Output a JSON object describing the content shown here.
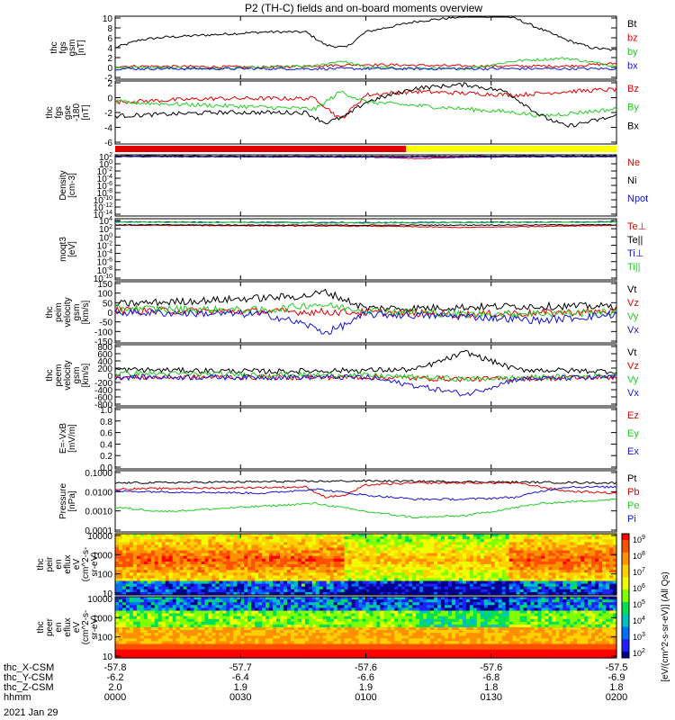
{
  "title": "P2 (TH-C) fields and on-board moments overview",
  "date": "2021 Jan 29",
  "orbit_rows": [
    {
      "label": "thc_X-CSM",
      "values": [
        "-57.8",
        "-57.7",
        "-57.6",
        "-57.6",
        "-57.5"
      ]
    },
    {
      "label": "thc_Y-CSM",
      "values": [
        "-6.2",
        "-6.4",
        "-6.6",
        "-6.8",
        "-6.9"
      ]
    },
    {
      "label": "thc_Z-CSM",
      "values": [
        "2.0",
        "1.9",
        "1.9",
        "1.8",
        "1.8"
      ]
    },
    {
      "label": "hhmm",
      "values": [
        "0000",
        "0030",
        "0100",
        "0130",
        "0200"
      ]
    }
  ],
  "colors": {
    "black": "#000000",
    "red": "#e00000",
    "green": "#22cc22",
    "blue": "#1414d2",
    "yellow": "#ffff00"
  },
  "mode_bar": {
    "segments": [
      {
        "color": "#e00000",
        "from": 0,
        "to": 0.58
      },
      {
        "color": "#ffff00",
        "from": 0.58,
        "to": 1.0
      }
    ]
  },
  "spectro_colorbar": {
    "label": "[eV/(cm^2-s-sr-eV)] (All Qs)",
    "ticks": [
      "10^9",
      "10^8",
      "10^7",
      "10^6",
      "10^5",
      "10^4",
      "10^3",
      "10^2"
    ]
  },
  "chart_data": [
    {
      "type": "line",
      "panel": "fgs",
      "ylabel": [
        "thc",
        "fgs",
        "gsm",
        "[nT]"
      ],
      "yticks": [
        "10",
        "8",
        "6",
        "4",
        "2",
        "0",
        "-2"
      ],
      "ylim": [
        -2,
        10
      ],
      "series": [
        {
          "name": "Bt",
          "color": "#000000",
          "x": [
            0,
            0.05,
            0.1,
            0.2,
            0.3,
            0.38,
            0.42,
            0.46,
            0.5,
            0.6,
            0.7,
            0.78,
            0.8,
            0.85,
            0.9,
            0.95,
            1.0
          ],
          "y": [
            4.0,
            5.5,
            6.0,
            6.5,
            7.0,
            7.0,
            4.5,
            4.0,
            7.0,
            9.0,
            10.0,
            10.0,
            9.5,
            7.5,
            5.5,
            4.0,
            3.5
          ]
        },
        {
          "name": "bz",
          "color": "#e00000",
          "x": [
            0,
            0.3,
            0.5,
            0.7,
            0.8,
            0.9,
            1.0
          ],
          "y": [
            0.5,
            0.3,
            0.8,
            0.5,
            0.5,
            0.5,
            1.0
          ]
        },
        {
          "name": "by",
          "color": "#22cc22",
          "x": [
            0,
            0.2,
            0.4,
            0.45,
            0.5,
            0.6,
            0.7,
            0.8,
            0.9,
            1.0
          ],
          "y": [
            0.3,
            0.0,
            0.5,
            1.5,
            0.3,
            0.0,
            0.0,
            1.5,
            2.0,
            0.5
          ]
        },
        {
          "name": "bx",
          "color": "#1414d2",
          "x": [
            0,
            0.5,
            1.0
          ],
          "y": [
            0.0,
            0.0,
            0.0
          ]
        }
      ]
    },
    {
      "type": "line",
      "panel": "fgs-gse",
      "ylabel": [
        "thc",
        "fgs",
        "gse",
        "-180",
        "[nT]"
      ],
      "yticks": [
        "2",
        "0",
        "-2",
        "-4",
        "-6"
      ],
      "ylim": [
        -7,
        2
      ],
      "series": [
        {
          "name": "Bz",
          "color": "#e00000",
          "x": [
            0,
            0.2,
            0.4,
            0.45,
            0.5,
            0.6,
            0.8,
            0.9,
            1.0
          ],
          "y": [
            -1.0,
            -0.5,
            -0.5,
            -3.5,
            0.0,
            0.5,
            0.0,
            0.5,
            0.8
          ]
        },
        {
          "name": "By",
          "color": "#22cc22",
          "x": [
            0,
            0.2,
            0.4,
            0.45,
            0.5,
            0.6,
            0.8,
            0.85,
            1.0
          ],
          "y": [
            -1.0,
            -1.5,
            -2.0,
            0.5,
            -1.0,
            -1.5,
            -2.5,
            -3.0,
            -2.0
          ]
        },
        {
          "name": "Bx",
          "color": "#000000",
          "x": [
            0,
            0.2,
            0.38,
            0.42,
            0.46,
            0.5,
            0.6,
            0.7,
            0.78,
            0.85,
            0.9,
            1.0
          ],
          "y": [
            -3.0,
            -2.5,
            -2.5,
            -4.0,
            -3.0,
            -1.0,
            1.0,
            1.5,
            0.5,
            -3.0,
            -4.5,
            -3.0
          ]
        }
      ]
    },
    {
      "type": "line",
      "panel": "density",
      "ylabel": [
        "Density",
        "[cm-3]"
      ],
      "yticks": [
        "10^2",
        "10^0",
        "10^-2",
        "10^-4",
        "10^-6",
        "10^-8",
        "10^-10",
        "10^-12",
        "10^-14"
      ],
      "ylim": [
        -14,
        2
      ],
      "log": true,
      "series": [
        {
          "name": "Ne",
          "color": "#e00000",
          "x": [
            0,
            0.5,
            0.6,
            0.7,
            1.0
          ],
          "y": [
            1.6,
            1.4,
            1.0,
            1.4,
            1.6
          ]
        },
        {
          "name": "Ni",
          "color": "#000000",
          "x": [
            0,
            0.5,
            1.0
          ],
          "y": [
            1.7,
            1.6,
            1.7
          ]
        },
        {
          "name": "Npot",
          "color": "#1414d2",
          "x": [
            0,
            0.5,
            1.0
          ],
          "y": [
            1.5,
            1.4,
            1.5
          ]
        }
      ]
    },
    {
      "type": "line",
      "panel": "temperature",
      "ylabel": [
        "moqt3",
        "[eV]"
      ],
      "yticks": [
        "10^4",
        "10^2",
        "10^0",
        "10^-2",
        "10^-4",
        "10^-6",
        "10^-8",
        "10^-10"
      ],
      "ylim": [
        -10,
        4
      ],
      "log": true,
      "series": [
        {
          "name": "Te⊥",
          "color": "#e00000",
          "x": [
            0,
            0.5,
            0.7,
            1.0
          ],
          "y": [
            2.5,
            2.3,
            2.0,
            2.5
          ]
        },
        {
          "name": "Te||",
          "color": "#000000",
          "x": [
            0,
            0.5,
            1.0
          ],
          "y": [
            2.6,
            2.5,
            2.6
          ]
        },
        {
          "name": "Ti⊥",
          "color": "#1414d2",
          "x": [
            0,
            0.5,
            1.0
          ],
          "y": [
            3.3,
            3.1,
            3.3
          ]
        },
        {
          "name": "Ti||",
          "color": "#22cc22",
          "x": [
            0,
            0.5,
            1.0
          ],
          "y": [
            3.2,
            3.0,
            3.2
          ]
        }
      ]
    },
    {
      "type": "line",
      "panel": "peim-velocity",
      "ylabel": [
        "thc",
        "peim",
        "velocity",
        "gsm",
        "[km/s]"
      ],
      "yticks": [
        "150",
        "100",
        "50",
        "0",
        "-50",
        "-100",
        "-150"
      ],
      "ylim": [
        -150,
        150
      ],
      "series": [
        {
          "name": "Vt",
          "color": "#000000",
          "x": [
            0,
            0.2,
            0.38,
            0.42,
            0.46,
            0.5,
            0.6,
            0.8,
            1.0
          ],
          "y": [
            40,
            60,
            80,
            100,
            60,
            20,
            20,
            30,
            30
          ]
        },
        {
          "name": "Vz",
          "color": "#e00000",
          "x": [
            0,
            0.5,
            0.7,
            1.0
          ],
          "y": [
            10,
            0,
            -10,
            5
          ]
        },
        {
          "name": "Vy",
          "color": "#22cc22",
          "x": [
            0,
            0.3,
            0.4,
            0.5,
            0.7,
            1.0
          ],
          "y": [
            20,
            10,
            40,
            10,
            -10,
            0
          ]
        },
        {
          "name": "Vx",
          "color": "#1414d2",
          "x": [
            0,
            0.3,
            0.38,
            0.42,
            0.46,
            0.5,
            0.7,
            0.85,
            1.0
          ],
          "y": [
            0,
            -10,
            -60,
            -100,
            -60,
            -10,
            -20,
            -40,
            -10
          ]
        }
      ]
    },
    {
      "type": "line",
      "panel": "peem-velocity",
      "ylabel": [
        "thc",
        "peem",
        "velocity",
        "gsm",
        "[km/s]"
      ],
      "yticks": [
        "800",
        "600",
        "400",
        "200",
        "0",
        "-200",
        "-400",
        "-600",
        "-800"
      ],
      "ylim": [
        -800,
        800
      ],
      "series": [
        {
          "name": "Vt",
          "color": "#000000",
          "x": [
            0,
            0.3,
            0.6,
            0.7,
            0.8,
            1.0
          ],
          "y": [
            150,
            100,
            150,
            600,
            150,
            100
          ]
        },
        {
          "name": "Vz",
          "color": "#e00000",
          "x": [
            0,
            0.5,
            0.7,
            1.0
          ],
          "y": [
            -50,
            -50,
            -100,
            -50
          ]
        },
        {
          "name": "Vy",
          "color": "#22cc22",
          "x": [
            0,
            0.5,
            0.7,
            1.0
          ],
          "y": [
            50,
            0,
            -100,
            0
          ]
        },
        {
          "name": "Vx",
          "color": "#1414d2",
          "x": [
            0,
            0.5,
            0.7,
            0.8,
            1.0
          ],
          "y": [
            -50,
            -50,
            -500,
            -100,
            -50
          ]
        }
      ]
    },
    {
      "type": "line",
      "panel": "efield",
      "ylabel": [
        "E=-VxB",
        "[mV/m]"
      ],
      "yticks": [
        "1.0",
        "0.8",
        "0.6",
        "0.4",
        "0.2",
        "0.0"
      ],
      "ylim": [
        0,
        1
      ],
      "series": [
        {
          "name": "Ez",
          "color": "#e00000",
          "x": [],
          "y": []
        },
        {
          "name": "Ey",
          "color": "#22cc22",
          "x": [],
          "y": []
        },
        {
          "name": "Ex",
          "color": "#1414d2",
          "x": [],
          "y": []
        }
      ]
    },
    {
      "type": "line",
      "panel": "pressure",
      "ylabel": [
        "Pressure",
        "[nPa]"
      ],
      "yticks": [
        "0.1000",
        "0.0100",
        "0.0010",
        "0.0001"
      ],
      "ylim": [
        -4,
        -1
      ],
      "log": true,
      "series": [
        {
          "name": "Pt",
          "color": "#000000",
          "x": [
            0,
            0.5,
            1.0
          ],
          "y": [
            -1.6,
            -1.5,
            -1.6
          ]
        },
        {
          "name": "Pb",
          "color": "#e00000",
          "x": [
            0,
            0.38,
            0.42,
            0.46,
            0.5,
            0.6,
            0.8,
            0.85,
            0.9,
            1.0
          ],
          "y": [
            -1.9,
            -1.8,
            -2.3,
            -2.2,
            -1.7,
            -1.6,
            -1.6,
            -1.8,
            -2.0,
            -2.1
          ]
        },
        {
          "name": "Pe",
          "color": "#22cc22",
          "x": [
            0,
            0.1,
            0.4,
            0.5,
            0.6,
            0.7,
            0.8,
            0.85,
            1.0
          ],
          "y": [
            -2.8,
            -3.0,
            -2.6,
            -3.0,
            -3.3,
            -3.2,
            -2.8,
            -2.6,
            -2.4
          ]
        },
        {
          "name": "Pi",
          "color": "#1414d2",
          "x": [
            0,
            0.3,
            0.4,
            0.5,
            0.6,
            0.7,
            0.8,
            0.85,
            0.9,
            1.0
          ],
          "y": [
            -2.0,
            -2.1,
            -1.9,
            -2.2,
            -2.4,
            -2.4,
            -2.3,
            -2.0,
            -1.8,
            -1.8
          ]
        }
      ]
    },
    {
      "type": "heatmap",
      "panel": "peir-spectrogram",
      "ylabel": [
        "thc",
        "peir",
        "en",
        "eflux",
        "eV",
        "(cm^2-s-",
        "sr-eV)"
      ],
      "yticks": [
        "10000",
        "1000",
        "100",
        "10"
      ],
      "ylim": [
        5,
        30000
      ],
      "log": true
    },
    {
      "type": "heatmap",
      "panel": "peer-spectrogram",
      "ylabel": [
        "thc",
        "peer",
        "en",
        "eflux",
        "eV",
        "(cm^2-s-",
        "sr-eV)"
      ],
      "yticks": [
        "10000",
        "1000",
        "100",
        "10"
      ],
      "ylim": [
        5,
        30000
      ],
      "log": true
    }
  ]
}
